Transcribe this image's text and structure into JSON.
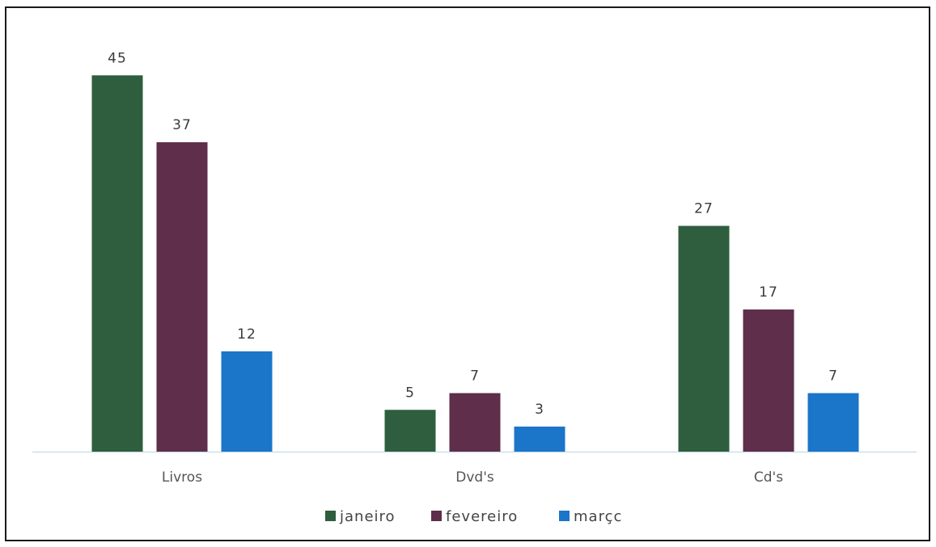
{
  "chart_data": {
    "type": "bar",
    "categories": [
      "Livros",
      "Dvd's",
      "Cd's"
    ],
    "series": [
      {
        "name": "janeiro",
        "values": [
          45,
          5,
          27
        ],
        "color": "#2e5e3e"
      },
      {
        "name": "fevereiro",
        "values": [
          37,
          7,
          17
        ],
        "color": "#5e2e4a"
      },
      {
        "name": "marçc",
        "values": [
          12,
          3,
          7
        ],
        "color": "#1b75c9"
      }
    ],
    "ylim": [
      0,
      50
    ],
    "grid": false,
    "legend_position": "bottom",
    "axis_color": "#c9e0ee",
    "title": "",
    "xlabel": "",
    "ylabel": ""
  }
}
